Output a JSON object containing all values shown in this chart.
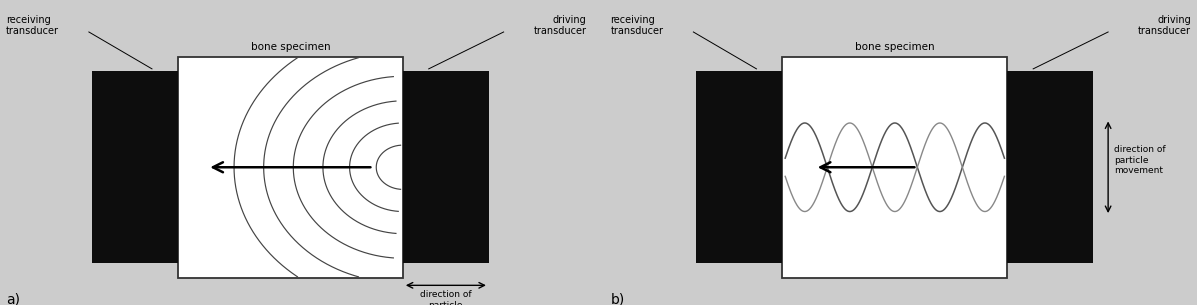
{
  "bg_color": "#cccccc",
  "panel_bg": "#ffffff",
  "transducer_color": "#0d0d0d",
  "fig_width": 11.97,
  "fig_height": 3.05,
  "dpi": 100,
  "font_size": 7.0,
  "label_a": "a)",
  "label_b": "b)",
  "title_a": "bone specimen",
  "title_b": "bone specimen",
  "text_receiving": "receiving\ntransducer",
  "text_driving": "driving\ntransducer",
  "text_direction_horiz": "direction of\nparticle\nmovement",
  "text_direction_vert": "direction of\nparticle\nmovement"
}
